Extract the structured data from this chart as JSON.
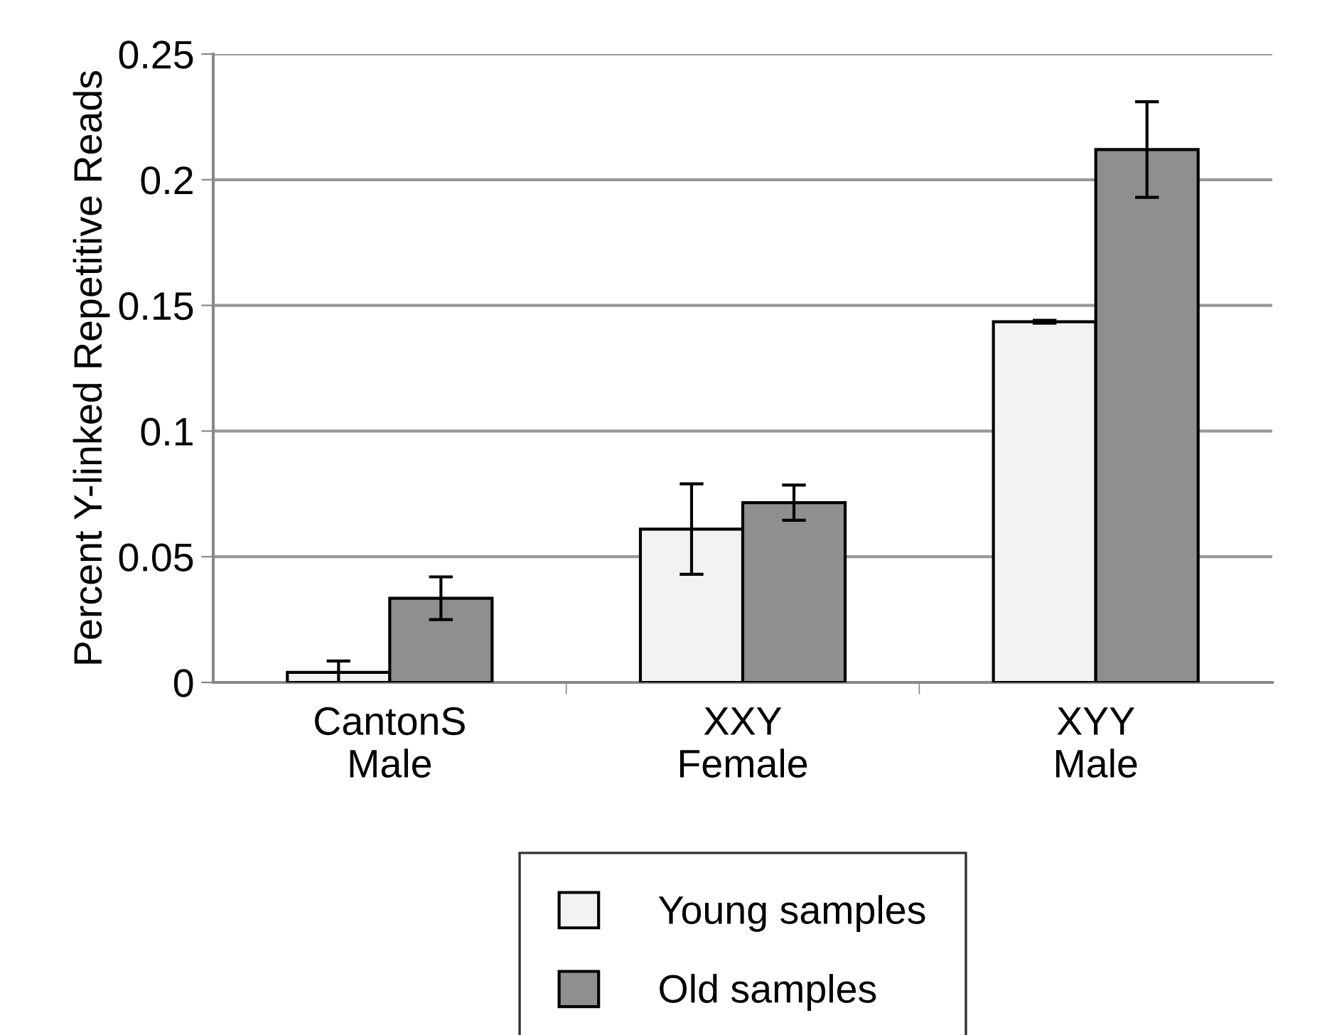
{
  "chart_data": {
    "type": "bar",
    "ylabel": "Percent Y-linked Repetitive Reads",
    "categories": [
      "CantonS\nMale",
      "XXY\nFemale",
      "XYY\nMale"
    ],
    "series": [
      {
        "name": "Young samples",
        "color": "#f2f2f2",
        "values": [
          0.004,
          0.061,
          0.1435
        ],
        "errors": [
          0.0045,
          0.018,
          0.0006
        ]
      },
      {
        "name": "Old samples",
        "color": "#8f8f8f",
        "values": [
          0.0335,
          0.0715,
          0.212
        ],
        "errors": [
          0.0085,
          0.007,
          0.019
        ]
      }
    ],
    "ylim": [
      0,
      0.25
    ],
    "yticks": [
      0,
      0.05,
      0.1,
      0.15,
      0.2,
      0.25
    ],
    "grid": "y",
    "legend": "bottom"
  }
}
